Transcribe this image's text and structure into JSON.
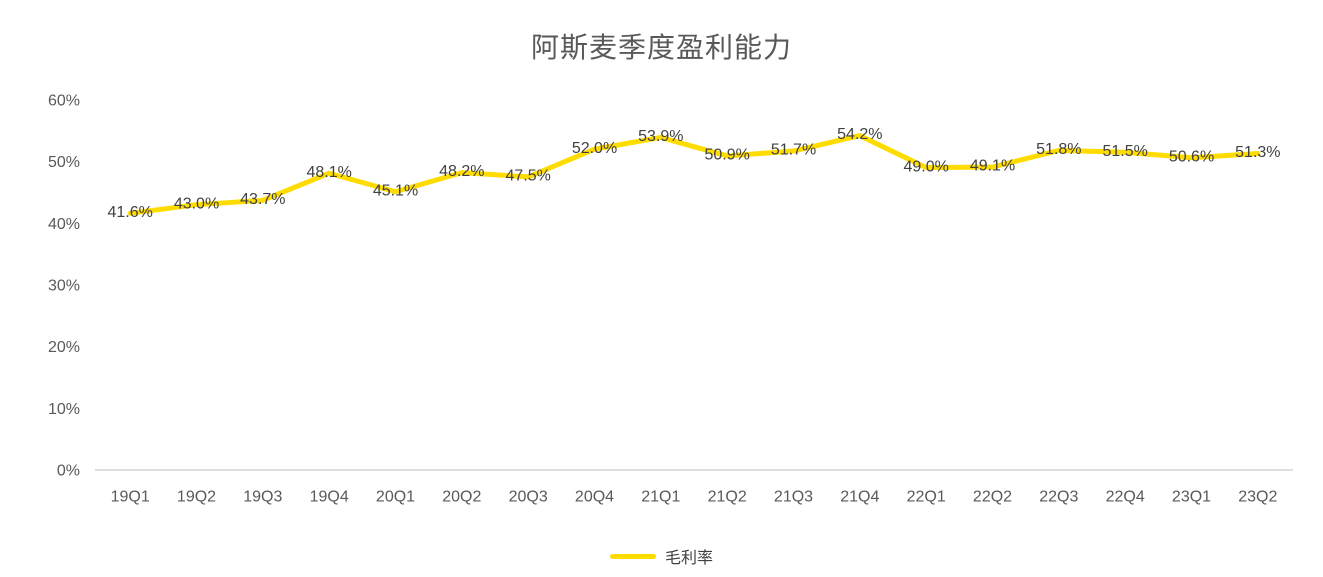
{
  "title": "阿斯麦季度盈利能力",
  "chart_data": {
    "type": "line",
    "title": "阿斯麦季度盈利能力",
    "categories": [
      "19Q1",
      "19Q2",
      "19Q3",
      "19Q4",
      "20Q1",
      "20Q2",
      "20Q3",
      "20Q4",
      "21Q1",
      "21Q2",
      "21Q3",
      "21Q4",
      "22Q1",
      "22Q2",
      "22Q3",
      "22Q4",
      "23Q1",
      "23Q2"
    ],
    "series": [
      {
        "name": "毛利率",
        "values": [
          41.6,
          43.0,
          43.7,
          48.1,
          45.1,
          48.2,
          47.5,
          52.0,
          53.9,
          50.9,
          51.7,
          54.2,
          49.0,
          49.1,
          51.8,
          51.5,
          50.6,
          51.3
        ],
        "labels": [
          "41.6%",
          "43.0%",
          "43.7%",
          "48.1%",
          "45.1%",
          "48.2%",
          "47.5%",
          "52.0%",
          "53.9%",
          "50.9%",
          "51.7%",
          "54.2%",
          "49.0%",
          "49.1%",
          "51.8%",
          "51.5%",
          "50.6%",
          "51.3%"
        ],
        "color": "#FFDC00"
      }
    ],
    "xlabel": "",
    "ylabel": "",
    "ylim": [
      0,
      60
    ],
    "y_ticks": [
      "0%",
      "10%",
      "20%",
      "30%",
      "40%",
      "50%",
      "60%"
    ],
    "grid": false,
    "data_labels": "center",
    "legend_position": "bottom"
  },
  "legend": {
    "items": [
      {
        "label": "毛利率",
        "color": "#FFDC00"
      }
    ]
  },
  "colors": {
    "line": "#FFDC00",
    "axis_line": "#D9D9D9",
    "tick_text": "#595959",
    "data_label_text": "#404040",
    "title_text": "#595959"
  }
}
